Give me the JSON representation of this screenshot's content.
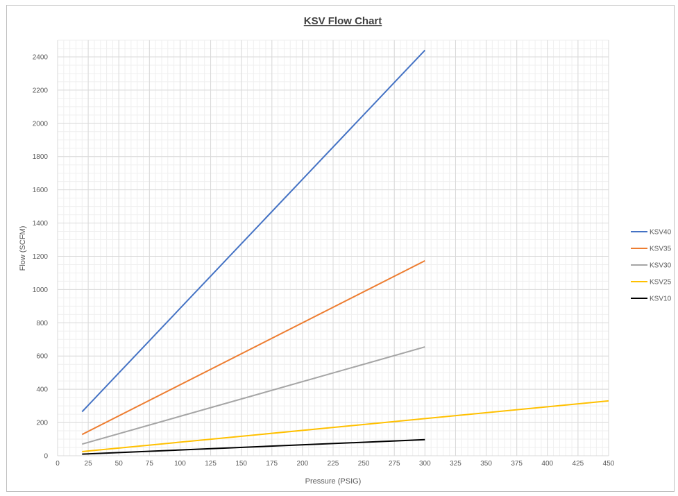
{
  "chart_data": {
    "type": "line",
    "title": "KSV Flow Chart",
    "xlabel": "Pressure (PSIG)",
    "ylabel": "Flow (SCFM)",
    "xlim": [
      0,
      450
    ],
    "ylim": [
      0,
      2500
    ],
    "x_ticks": [
      0,
      25,
      50,
      75,
      100,
      125,
      150,
      175,
      200,
      225,
      250,
      275,
      300,
      325,
      350,
      375,
      400,
      425,
      450
    ],
    "y_ticks": [
      0,
      200,
      400,
      600,
      800,
      1000,
      1200,
      1400,
      1600,
      1800,
      2000,
      2200,
      2400
    ],
    "grid": true,
    "legend_position": "right",
    "series": [
      {
        "name": "KSV40",
        "color": "#4472C4",
        "x": [
          20,
          300
        ],
        "y": [
          265,
          2440
        ]
      },
      {
        "name": "KSV35",
        "color": "#ED7D31",
        "x": [
          20,
          300
        ],
        "y": [
          128,
          1173
        ]
      },
      {
        "name": "KSV30",
        "color": "#A5A5A5",
        "x": [
          20,
          300
        ],
        "y": [
          70,
          655
        ]
      },
      {
        "name": "KSV25",
        "color": "#FFC000",
        "x": [
          20,
          450
        ],
        "y": [
          25,
          330
        ]
      },
      {
        "name": "KSV10",
        "color": "#000000",
        "x": [
          20,
          300
        ],
        "y": [
          10,
          97
        ]
      }
    ]
  }
}
